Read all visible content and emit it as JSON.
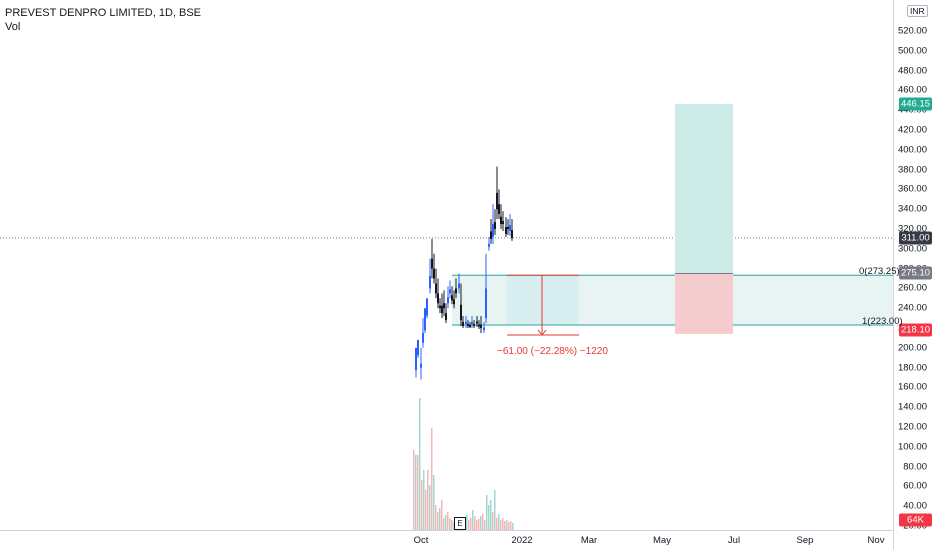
{
  "header": {
    "symbol_title": "PREVEST DENPRO LIMITED, 1D, BSE",
    "vol_label": "Vol"
  },
  "currency_label": "INR",
  "y_axis": {
    "ticks": [
      "520.00",
      "500.00",
      "480.00",
      "460.00",
      "440.00",
      "420.00",
      "400.00",
      "380.00",
      "360.00",
      "340.00",
      "320.00",
      "300.00",
      "280.00",
      "260.00",
      "240.00",
      "220.00",
      "200.00",
      "180.00",
      "160.00",
      "140.00",
      "120.00",
      "100.00",
      "80.00",
      "60.00",
      "40.00",
      "20.00"
    ],
    "tick_values": [
      520,
      500,
      480,
      460,
      440,
      420,
      400,
      380,
      360,
      340,
      320,
      300,
      280,
      260,
      240,
      220,
      200,
      180,
      160,
      140,
      120,
      100,
      80,
      60,
      40,
      20
    ]
  },
  "price_tags": [
    {
      "label": "446.15",
      "value": 446.15,
      "color": "#22ab94"
    },
    {
      "label": "311.00",
      "value": 311.0,
      "color": "#363a45"
    },
    {
      "label": "275.10",
      "value": 275.1,
      "color": "#787b86"
    },
    {
      "label": "218.10",
      "value": 218.1,
      "color": "#f23645"
    },
    {
      "label": "64K",
      "value": null,
      "color": "#f23645"
    }
  ],
  "x_axis": {
    "labels": [
      "Oct",
      "2022",
      "Mar",
      "May",
      "Jul",
      "Sep",
      "Nov"
    ]
  },
  "last_price": 311.0,
  "zones": {
    "top_label": "0(273.25)",
    "top_value": 273.25,
    "bottom_label": "1(223.00)",
    "bottom_value": 223.0
  },
  "measure": {
    "label": "−61.00 (−22.28%) −1220"
  },
  "earnings_marker": "E",
  "position_tool": {
    "entry": 275.1,
    "target": 446.15,
    "stop": 218.1
  },
  "colors": {
    "up": "#2962ff",
    "down": "#131722",
    "vol_up": "#9fd8d0",
    "vol_down": "#f7b6b6",
    "zone_line": "#26a69a",
    "profit_fill": "#cdece8",
    "loss_fill": "#f4cccd",
    "zone_fill": "#e8f4f2",
    "measure_red": "#e53935"
  }
}
